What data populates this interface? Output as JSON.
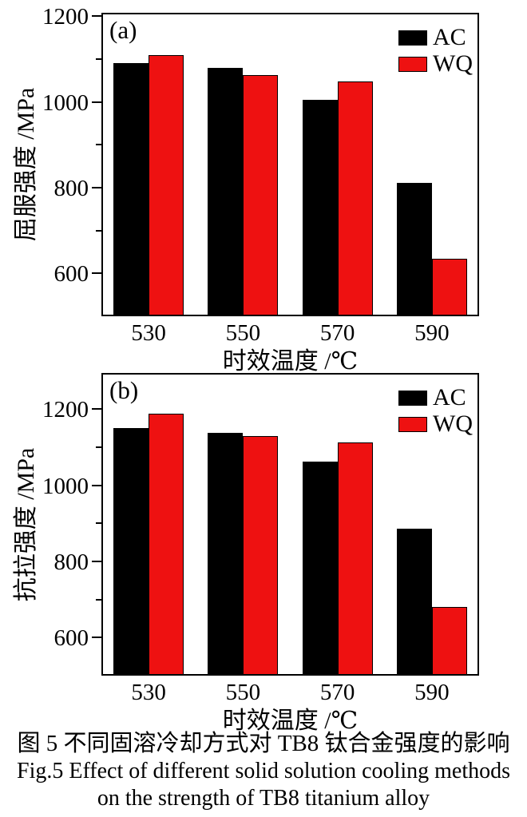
{
  "figure": {
    "caption_zh": "图 5  不同固溶冷却方式对 TB8 钛合金强度的影响",
    "caption_en_line1": "Fig.5  Effect of different solid solution cooling methods",
    "caption_en_line2": "on the strength of TB8 titanium alloy"
  },
  "colors": {
    "ac": "#000000",
    "wq": "#ee1111",
    "axis": "#000000",
    "background": "#ffffff"
  },
  "chart_data": [
    {
      "id": "a",
      "type": "bar",
      "panel_label": "(a)",
      "xlabel": "时效温度 /℃",
      "ylabel": "屈服强度 /MPa",
      "categories": [
        "530",
        "550",
        "570",
        "590"
      ],
      "series": [
        {
          "name": "AC",
          "color": "#000000",
          "values": [
            1090,
            1080,
            1004,
            812
          ]
        },
        {
          "name": "WQ",
          "color": "#ee1111",
          "values": [
            1110,
            1063,
            1048,
            635
          ]
        }
      ],
      "ylim": [
        500,
        1208
      ],
      "yticks_major": [
        600,
        800,
        1000,
        1200
      ],
      "yticks_minor": [
        700,
        900,
        1100
      ],
      "grid": false,
      "legend_position": "top-right",
      "legend_entries": [
        "AC",
        "WQ"
      ]
    },
    {
      "id": "b",
      "type": "bar",
      "panel_label": "(b)",
      "xlabel": "时效温度 /℃",
      "ylabel": "抗拉强度 /MPa",
      "categories": [
        "530",
        "550",
        "570",
        "590"
      ],
      "series": [
        {
          "name": "AC",
          "color": "#000000",
          "values": [
            1150,
            1137,
            1062,
            885
          ]
        },
        {
          "name": "WQ",
          "color": "#ee1111",
          "values": [
            1188,
            1130,
            1112,
            680
          ]
        }
      ],
      "ylim": [
        500,
        1295
      ],
      "yticks_major": [
        600,
        800,
        1000,
        1200
      ],
      "yticks_minor": [
        700,
        900,
        1100
      ],
      "grid": false,
      "legend_position": "top-right",
      "legend_entries": [
        "AC",
        "WQ"
      ]
    }
  ]
}
